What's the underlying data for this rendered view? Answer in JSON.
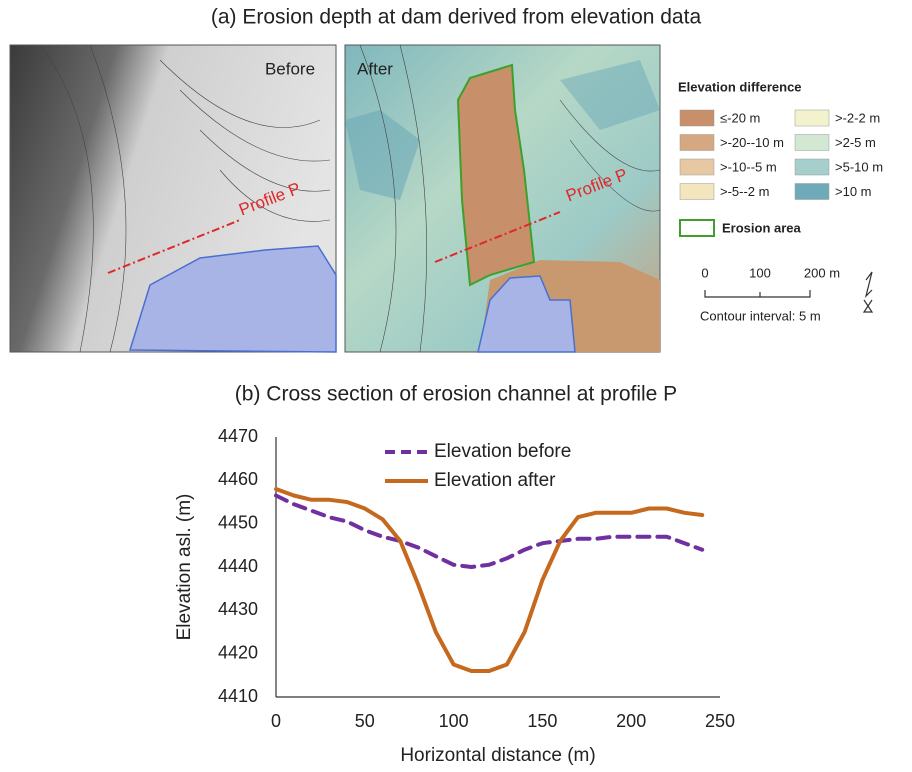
{
  "figure_a": {
    "title": "(a) Erosion depth at dam derived from elevation data",
    "before_label": "Before",
    "after_label": "After",
    "profile_label": "Profile P",
    "legend_title": "Elevation difference",
    "legend_items": [
      {
        "label": "≤-20 m",
        "color": "#c8906a"
      },
      {
        "label": ">-20--10 m",
        "color": "#d6a882"
      },
      {
        "label": ">-10--5 m",
        "color": "#e6c9a2"
      },
      {
        "label": ">-5--2 m",
        "color": "#f3e6bc"
      },
      {
        "label": ">-2-2 m",
        "color": "#f2f2cc"
      },
      {
        "label": ">2-5 m",
        "color": "#d2e8d2"
      },
      {
        "label": ">5-10 m",
        "color": "#a6cfcb"
      },
      {
        "label": ">10 m",
        "color": "#6eaab8"
      }
    ],
    "erosion_area": "Erosion area",
    "scale_labels": [
      "0",
      "100",
      "200 m"
    ],
    "contour_interval": "Contour interval: 5 m"
  },
  "chart_data": {
    "type": "line",
    "title": "(b) Cross section of erosion channel at profile P",
    "x_label": "Horizontal distance (m)",
    "y_label": "Elevation asl. (m)",
    "x": [
      0,
      10,
      20,
      30,
      40,
      50,
      60,
      70,
      80,
      90,
      100,
      110,
      120,
      130,
      140,
      150,
      160,
      170,
      180,
      190,
      200,
      210,
      220,
      230,
      240
    ],
    "series": [
      {
        "name": "Elevation before",
        "color": "#7030a0",
        "dashed": true,
        "values": [
          4456.5,
          4454.5,
          4453,
          4451.5,
          4450.5,
          4448.5,
          4447,
          4446,
          4444.5,
          4442.5,
          4440.5,
          4440,
          4440.5,
          4442,
          4444,
          4445.5,
          4446,
          4446.5,
          4446.5,
          4447,
          4447,
          4447,
          4447,
          4445.5,
          4444
        ]
      },
      {
        "name": "Elevation after",
        "color": "#c5691e",
        "dashed": false,
        "values": [
          4458,
          4456.5,
          4455.5,
          4455.5,
          4455,
          4453.5,
          4451,
          4446,
          4436,
          4425,
          4417.5,
          4416,
          4416,
          4417.5,
          4425,
          4437,
          4446,
          4451.5,
          4452.5,
          4452.5,
          4452.5,
          4453.5,
          4453.5,
          4452.5,
          4452
        ]
      }
    ],
    "xlim": [
      0,
      250
    ],
    "xticks": [
      0,
      50,
      100,
      150,
      200,
      250
    ],
    "ylim": [
      4410,
      4470
    ],
    "yticks": [
      4410,
      4420,
      4430,
      4440,
      4450,
      4460,
      4470
    ],
    "grid": false
  }
}
